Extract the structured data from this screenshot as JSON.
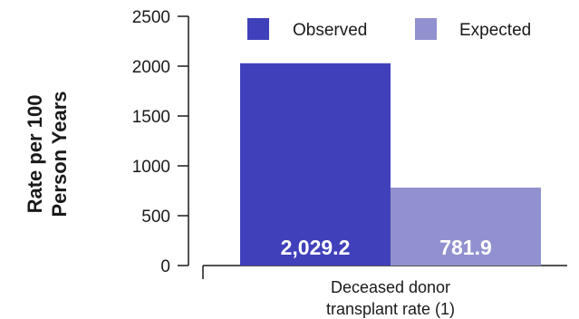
{
  "chart_data": {
    "type": "bar",
    "categories": [
      "Deceased donor transplant rate (1)"
    ],
    "category_lines": [
      "Deceased donor",
      "transplant rate (1)"
    ],
    "series": [
      {
        "name": "Observed",
        "values": [
          2029.2
        ],
        "value_labels": [
          "2,029.2"
        ],
        "color": "#4040bb"
      },
      {
        "name": "Expected",
        "values": [
          781.9
        ],
        "value_labels": [
          "781.9"
        ],
        "color": "#9191cf"
      }
    ],
    "ylabel_lines": [
      "Rate per 100",
      "Person Years"
    ],
    "xlabel": "",
    "title": "",
    "ylim": [
      0,
      2500
    ],
    "yticks": [
      0,
      500,
      1000,
      1500,
      2000,
      2500
    ],
    "ytick_labels": [
      "0",
      "500",
      "1000",
      "1500",
      "2000",
      "2500"
    ],
    "legend_position": "top",
    "grid": false
  }
}
